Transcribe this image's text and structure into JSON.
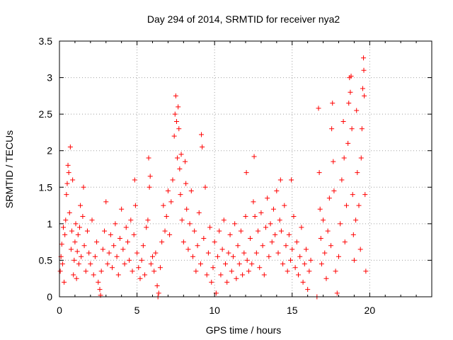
{
  "chart_data": {
    "type": "scatter",
    "title": "Day 294 of 2014, SRMTID for receiver nya2",
    "xlabel": "GPS time / hours",
    "ylabel": "SRMTID / TECUs",
    "xlim": [
      0,
      24
    ],
    "ylim": [
      0,
      3.5
    ],
    "xticks": [
      0,
      5,
      10,
      15,
      20
    ],
    "xtick_labels": [
      "0",
      "5",
      "10",
      "15",
      "20"
    ],
    "yticks": [
      0,
      0.5,
      1,
      1.5,
      2,
      2.5,
      3,
      3.5
    ],
    "ytick_labels": [
      "0",
      "0.5",
      "1",
      "1.5",
      "2",
      "2.5",
      "3",
      "3.5"
    ],
    "grid": true,
    "marker": "+",
    "color": "#ff0000",
    "series": [
      {
        "name": "SRMTID",
        "points": [
          [
            0.05,
            0.35
          ],
          [
            0.1,
            0.55
          ],
          [
            0.15,
            0.72
          ],
          [
            0.2,
            0.45
          ],
          [
            0.25,
            0.95
          ],
          [
            0.3,
            0.2
          ],
          [
            0.35,
            0.85
          ],
          [
            0.4,
            1.05
          ],
          [
            0.45,
            1.4
          ],
          [
            0.5,
            1.55
          ],
          [
            0.55,
            1.8
          ],
          [
            0.6,
            1.7
          ],
          [
            0.65,
            1.15
          ],
          [
            0.7,
            2.05
          ],
          [
            0.75,
            0.65
          ],
          [
            0.8,
            0.9
          ],
          [
            0.85,
            1.6
          ],
          [
            0.9,
            0.3
          ],
          [
            0.95,
            0.5
          ],
          [
            1.0,
            0.75
          ],
          [
            1.05,
            1.0
          ],
          [
            1.1,
            0.25
          ],
          [
            1.15,
            0.62
          ],
          [
            1.2,
            0.85
          ],
          [
            1.25,
            0.45
          ],
          [
            1.3,
            0.95
          ],
          [
            1.35,
            1.25
          ],
          [
            1.4,
            0.55
          ],
          [
            1.5,
            1.1
          ],
          [
            1.55,
            1.5
          ],
          [
            1.6,
            0.7
          ],
          [
            1.7,
            0.35
          ],
          [
            1.8,
            0.9
          ],
          [
            1.9,
            0.6
          ],
          [
            2.0,
            0.45
          ],
          [
            2.1,
            1.05
          ],
          [
            2.2,
            0.3
          ],
          [
            2.3,
            0.55
          ],
          [
            2.4,
            0.75
          ],
          [
            2.5,
            0.2
          ],
          [
            2.6,
            0.1
          ],
          [
            2.65,
            0.02
          ],
          [
            2.7,
            0.35
          ],
          [
            2.8,
            0.65
          ],
          [
            2.9,
            0.9
          ],
          [
            3.0,
            1.3
          ],
          [
            3.1,
            0.45
          ],
          [
            3.2,
            0.6
          ],
          [
            3.3,
            0.85
          ],
          [
            3.4,
            0.4
          ],
          [
            3.5,
            0.7
          ],
          [
            3.6,
            1.0
          ],
          [
            3.7,
            0.55
          ],
          [
            3.8,
            0.3
          ],
          [
            3.9,
            0.8
          ],
          [
            4.0,
            1.2
          ],
          [
            4.1,
            0.65
          ],
          [
            4.2,
            0.45
          ],
          [
            4.3,
            0.95
          ],
          [
            4.4,
            0.75
          ],
          [
            4.5,
            0.5
          ],
          [
            4.6,
            1.05
          ],
          [
            4.7,
            0.35
          ],
          [
            4.8,
            0.85
          ],
          [
            4.85,
            1.6
          ],
          [
            4.9,
            1.25
          ],
          [
            5.0,
            0.6
          ],
          [
            5.1,
            0.4
          ],
          [
            5.2,
            0.25
          ],
          [
            5.3,
            0.5
          ],
          [
            5.4,
            0.7
          ],
          [
            5.5,
            0.3
          ],
          [
            5.6,
            0.95
          ],
          [
            5.7,
            1.05
          ],
          [
            5.75,
            1.9
          ],
          [
            5.8,
            1.5
          ],
          [
            5.85,
            1.65
          ],
          [
            5.9,
            0.45
          ],
          [
            6.0,
            0.55
          ],
          [
            6.1,
            0.35
          ],
          [
            6.2,
            0.6
          ],
          [
            6.3,
            0.15
          ],
          [
            6.35,
            0.0
          ],
          [
            6.4,
            0.05
          ],
          [
            6.5,
            0.4
          ],
          [
            6.6,
            0.75
          ],
          [
            6.7,
            1.25
          ],
          [
            6.8,
            0.9
          ],
          [
            6.9,
            1.1
          ],
          [
            7.0,
            1.45
          ],
          [
            7.1,
            0.85
          ],
          [
            7.2,
            1.3
          ],
          [
            7.3,
            1.6
          ],
          [
            7.4,
            2.2
          ],
          [
            7.45,
            2.5
          ],
          [
            7.5,
            2.75
          ],
          [
            7.55,
            2.4
          ],
          [
            7.6,
            1.9
          ],
          [
            7.65,
            2.6
          ],
          [
            7.7,
            2.3
          ],
          [
            7.75,
            1.75
          ],
          [
            7.8,
            1.4
          ],
          [
            7.85,
            1.95
          ],
          [
            7.9,
            1.05
          ],
          [
            8.0,
            0.75
          ],
          [
            8.1,
            1.85
          ],
          [
            8.15,
            1.55
          ],
          [
            8.2,
            1.2
          ],
          [
            8.3,
            0.65
          ],
          [
            8.4,
            1.0
          ],
          [
            8.5,
            1.45
          ],
          [
            8.6,
            0.55
          ],
          [
            8.7,
            0.9
          ],
          [
            8.8,
            0.35
          ],
          [
            8.9,
            0.7
          ],
          [
            9.0,
            1.15
          ],
          [
            9.1,
            0.45
          ],
          [
            9.15,
            2.22
          ],
          [
            9.2,
            2.05
          ],
          [
            9.3,
            0.8
          ],
          [
            9.4,
            1.5
          ],
          [
            9.5,
            0.3
          ],
          [
            9.6,
            0.6
          ],
          [
            9.7,
            0.95
          ],
          [
            9.8,
            0.2
          ],
          [
            9.9,
            0.4
          ],
          [
            10.0,
            0.75
          ],
          [
            10.1,
            0.05
          ],
          [
            10.2,
            0.55
          ],
          [
            10.3,
            0.9
          ],
          [
            10.4,
            0.3
          ],
          [
            10.5,
            0.65
          ],
          [
            10.6,
            1.05
          ],
          [
            10.7,
            0.45
          ],
          [
            10.8,
            0.2
          ],
          [
            10.9,
            0.6
          ],
          [
            11.0,
            0.85
          ],
          [
            11.1,
            0.35
          ],
          [
            11.2,
            0.55
          ],
          [
            11.3,
            1.0
          ],
          [
            11.4,
            0.25
          ],
          [
            11.5,
            0.7
          ],
          [
            11.6,
            0.45
          ],
          [
            11.7,
            0.9
          ],
          [
            11.8,
            0.3
          ],
          [
            11.9,
            0.6
          ],
          [
            12.0,
            1.1
          ],
          [
            12.05,
            1.7
          ],
          [
            12.1,
            0.5
          ],
          [
            12.2,
            0.35
          ],
          [
            12.3,
            0.8
          ],
          [
            12.4,
            0.45
          ],
          [
            12.5,
            1.3
          ],
          [
            12.55,
            1.92
          ],
          [
            12.6,
            1.1
          ],
          [
            12.7,
            0.6
          ],
          [
            12.8,
            0.9
          ],
          [
            12.9,
            0.4
          ],
          [
            13.0,
            1.15
          ],
          [
            13.1,
            0.7
          ],
          [
            13.2,
            0.3
          ],
          [
            13.3,
            0.95
          ],
          [
            13.4,
            1.35
          ],
          [
            13.5,
            0.55
          ],
          [
            13.6,
            1.0
          ],
          [
            13.7,
            0.75
          ],
          [
            13.8,
            1.2
          ],
          [
            13.9,
            0.85
          ],
          [
            14.0,
            1.45
          ],
          [
            14.1,
            0.6
          ],
          [
            14.2,
            1.05
          ],
          [
            14.25,
            1.6
          ],
          [
            14.3,
            0.9
          ],
          [
            14.4,
            0.45
          ],
          [
            14.5,
            1.25
          ],
          [
            14.6,
            0.7
          ],
          [
            14.7,
            0.35
          ],
          [
            14.8,
            0.85
          ],
          [
            14.9,
            0.5
          ],
          [
            14.95,
            1.6
          ],
          [
            15.0,
            0.65
          ],
          [
            15.1,
            1.1
          ],
          [
            15.2,
            0.4
          ],
          [
            15.3,
            0.75
          ],
          [
            15.4,
            0.3
          ],
          [
            15.5,
            0.55
          ],
          [
            15.6,
            0.95
          ],
          [
            15.7,
            0.2
          ],
          [
            15.8,
            0.45
          ],
          [
            15.9,
            0.65
          ],
          [
            16.0,
            0.1
          ],
          [
            16.1,
            0.35
          ],
          [
            16.2,
            0.5
          ],
          [
            16.6,
            0.0
          ],
          [
            16.7,
            2.58
          ],
          [
            16.75,
            1.7
          ],
          [
            16.8,
            1.2
          ],
          [
            16.85,
            0.8
          ],
          [
            16.9,
            0.45
          ],
          [
            17.0,
            1.05
          ],
          [
            17.1,
            0.6
          ],
          [
            17.2,
            0.25
          ],
          [
            17.3,
            0.9
          ],
          [
            17.4,
            1.35
          ],
          [
            17.5,
            0.7
          ],
          [
            17.55,
            2.3
          ],
          [
            17.6,
            2.65
          ],
          [
            17.65,
            1.85
          ],
          [
            17.7,
            1.45
          ],
          [
            17.8,
            0.35
          ],
          [
            17.9,
            0.05
          ],
          [
            18.0,
            0.55
          ],
          [
            18.1,
            1.0
          ],
          [
            18.2,
            1.6
          ],
          [
            18.3,
            2.4
          ],
          [
            18.35,
            1.9
          ],
          [
            18.4,
            0.75
          ],
          [
            18.5,
            1.25
          ],
          [
            18.6,
            2.1
          ],
          [
            18.65,
            2.65
          ],
          [
            18.7,
            3.0
          ],
          [
            18.75,
            2.8
          ],
          [
            18.8,
            3.02
          ],
          [
            18.85,
            2.3
          ],
          [
            18.9,
            1.4
          ],
          [
            18.95,
            0.85
          ],
          [
            19.0,
            0.5
          ],
          [
            19.1,
            1.05
          ],
          [
            19.15,
            2.55
          ],
          [
            19.2,
            1.7
          ],
          [
            19.3,
            1.25
          ],
          [
            19.4,
            0.65
          ],
          [
            19.45,
            1.9
          ],
          [
            19.5,
            2.3
          ],
          [
            19.55,
            2.85
          ],
          [
            19.6,
            3.27
          ],
          [
            19.62,
            3.1
          ],
          [
            19.65,
            2.75
          ],
          [
            19.7,
            1.4
          ],
          [
            19.75,
            0.35
          ]
        ]
      }
    ]
  }
}
